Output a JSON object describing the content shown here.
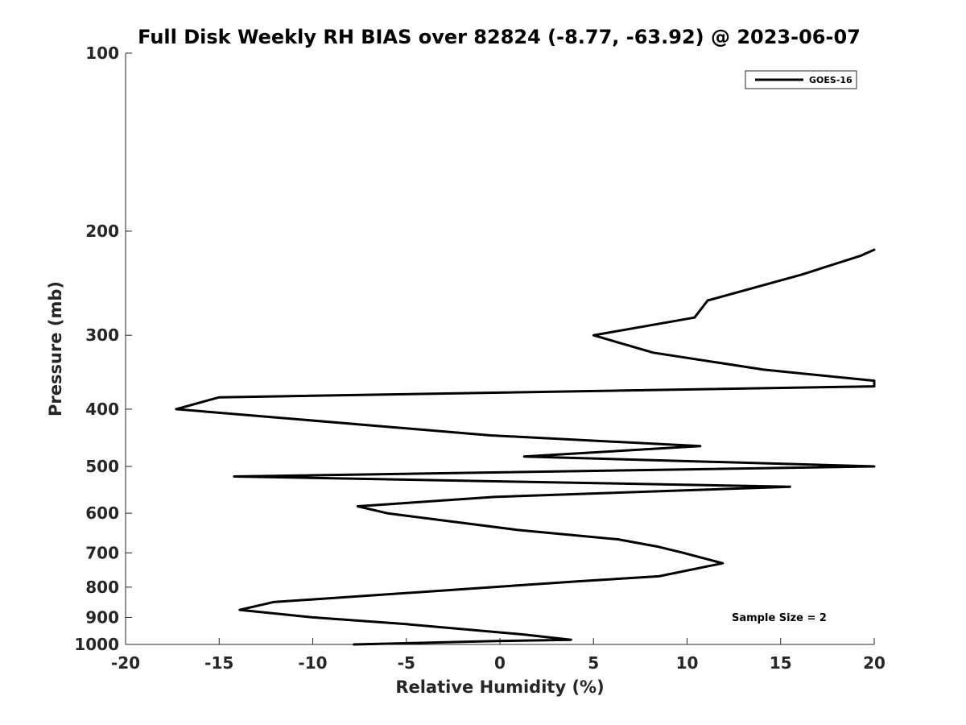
{
  "chart_data": {
    "type": "line",
    "title": "Full Disk Weekly RH BIAS over 82824 (-8.77, -63.92) @ 2023-06-07",
    "xlabel": "Relative Humidity (%)",
    "ylabel": "Pressure (mb)",
    "xlim": [
      -20,
      20
    ],
    "ylim": [
      1000,
      100
    ],
    "yscale": "log",
    "y_reversed": true,
    "grid": false,
    "legend_position": "top-right",
    "x_ticks": [
      -20,
      -15,
      -10,
      -5,
      0,
      5,
      10,
      15,
      20
    ],
    "x_tick_labels": [
      "-20",
      "-15",
      "-10",
      "-5",
      "0",
      "5",
      "10",
      "15",
      "20"
    ],
    "y_ticks": [
      100,
      200,
      300,
      400,
      500,
      600,
      700,
      800,
      900,
      1000
    ],
    "y_tick_labels": [
      "100",
      "200",
      "300",
      "400",
      "500",
      "600",
      "700",
      "800",
      "900",
      "1000"
    ],
    "annotation": "Sample Size = 2",
    "series": [
      {
        "name": "GOES-16",
        "color": "#000000",
        "points": [
          {
            "x": 20.0,
            "y": 215
          },
          {
            "x": 19.3,
            "y": 220
          },
          {
            "x": 16.1,
            "y": 237
          },
          {
            "x": 11.1,
            "y": 262
          },
          {
            "x": 10.4,
            "y": 280
          },
          {
            "x": 5.0,
            "y": 300
          },
          {
            "x": 8.2,
            "y": 321
          },
          {
            "x": 14.1,
            "y": 343
          },
          {
            "x": 20.0,
            "y": 358
          },
          {
            "x": 20.0,
            "y": 366
          },
          {
            "x": -15.0,
            "y": 382
          },
          {
            "x": -17.3,
            "y": 400
          },
          {
            "x": -0.5,
            "y": 443
          },
          {
            "x": 10.7,
            "y": 462
          },
          {
            "x": 1.3,
            "y": 481
          },
          {
            "x": 20.0,
            "y": 500
          },
          {
            "x": -14.2,
            "y": 520
          },
          {
            "x": 15.5,
            "y": 541
          },
          {
            "x": -0.3,
            "y": 563
          },
          {
            "x": -7.6,
            "y": 584
          },
          {
            "x": -6.0,
            "y": 600
          },
          {
            "x": 0.9,
            "y": 640
          },
          {
            "x": 6.3,
            "y": 664
          },
          {
            "x": 8.5,
            "y": 684
          },
          {
            "x": 9.8,
            "y": 700
          },
          {
            "x": 11.9,
            "y": 729
          },
          {
            "x": 8.5,
            "y": 767
          },
          {
            "x": 4.2,
            "y": 782
          },
          {
            "x": -0.4,
            "y": 800
          },
          {
            "x": -12.1,
            "y": 848
          },
          {
            "x": -13.9,
            "y": 874
          },
          {
            "x": -10.0,
            "y": 900
          },
          {
            "x": -5.0,
            "y": 924
          },
          {
            "x": 1.3,
            "y": 962
          },
          {
            "x": 3.8,
            "y": 982
          },
          {
            "x": -0.2,
            "y": 987
          },
          {
            "x": -7.8,
            "y": 1000
          }
        ]
      }
    ]
  }
}
